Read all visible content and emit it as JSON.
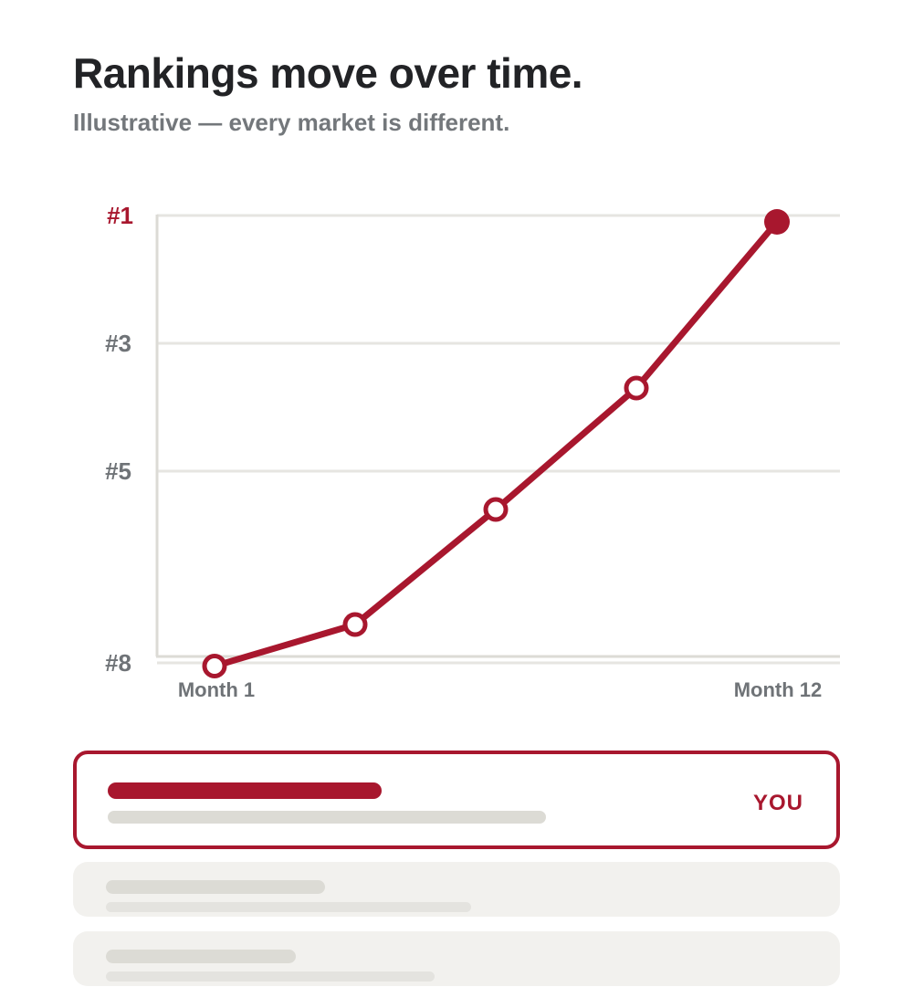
{
  "header": {
    "title": "Rankings move over time.",
    "subtitle": "Illustrative — every market is different."
  },
  "colors": {
    "accent": "#a8172e",
    "muted_text": "#6f7377",
    "grid": "#e6e5e1",
    "axis": "#dcdbd6",
    "placeholder": "#dcdbd5",
    "card_bg": "#f2f1ee"
  },
  "chart_data": {
    "type": "line",
    "title": "",
    "xlabel": "",
    "ylabel": "",
    "y_axis": "rank (inverted, #1 at top)",
    "yticks": [
      {
        "value": 1,
        "label": "#1",
        "highlight": true
      },
      {
        "value": 3,
        "label": "#3",
        "highlight": false
      },
      {
        "value": 5,
        "label": "#5",
        "highlight": false
      },
      {
        "value": 8,
        "label": "#8",
        "highlight": false
      }
    ],
    "xticks": [
      {
        "value": 1,
        "label": "Month 1"
      },
      {
        "value": 12,
        "label": "Month 12"
      }
    ],
    "xlim": [
      1,
      12
    ],
    "series": [
      {
        "color": "#a8172e",
        "points": [
          {
            "x": 1,
            "y": 8.05,
            "marker": "hollow"
          },
          {
            "x": 3.5,
            "y": 7.4,
            "marker": "hollow"
          },
          {
            "x": 6,
            "y": 5.6,
            "marker": "hollow"
          },
          {
            "x": 8.5,
            "y": 3.7,
            "marker": "hollow"
          },
          {
            "x": 11,
            "y": 1.1,
            "marker": "filled"
          }
        ]
      }
    ],
    "grid": true,
    "legend": "none"
  },
  "listing": {
    "you_label": "YOU"
  }
}
